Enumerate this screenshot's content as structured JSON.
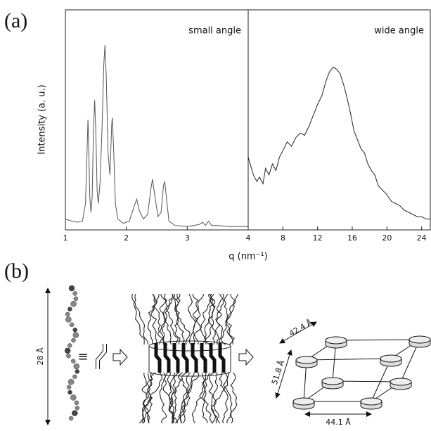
{
  "labels": {
    "a": "(a)",
    "b": "(b)"
  },
  "chart_data": [
    {
      "type": "line",
      "annotation": "small angle",
      "ylabel": "Intensity (a. u.)",
      "xlabel": "q (nm⁻¹)",
      "color": "#555555",
      "xlim": [
        1,
        4
      ],
      "xticks": [
        1,
        2,
        3
      ],
      "ylim": [
        0,
        100
      ],
      "x": [
        1.0,
        1.1,
        1.2,
        1.28,
        1.33,
        1.36,
        1.37,
        1.38,
        1.4,
        1.42,
        1.44,
        1.46,
        1.48,
        1.5,
        1.52,
        1.54,
        1.57,
        1.6,
        1.63,
        1.65,
        1.67,
        1.7,
        1.73,
        1.76,
        1.77,
        1.79,
        1.82,
        1.86,
        1.95,
        2.05,
        2.12,
        2.17,
        2.21,
        2.28,
        2.35,
        2.4,
        2.43,
        2.47,
        2.52,
        2.57,
        2.61,
        2.63,
        2.66,
        2.7,
        2.8,
        3.0,
        3.1,
        3.2,
        3.25,
        3.3,
        3.35,
        3.4,
        3.5,
        3.7,
        3.9,
        4.0
      ],
      "values": [
        5,
        4,
        3.5,
        4,
        12,
        40,
        50,
        42,
        15,
        8,
        15,
        45,
        59,
        45,
        18,
        12,
        22,
        45,
        75,
        84,
        70,
        35,
        25,
        48,
        51,
        38,
        12,
        5,
        3,
        4,
        10,
        14,
        9,
        5,
        7,
        18,
        23,
        15,
        6,
        8,
        20,
        22,
        14,
        4,
        2,
        1.5,
        2,
        2.5,
        3.5,
        2,
        4,
        2,
        2,
        1.5,
        1.5,
        1.5
      ]
    },
    {
      "type": "line",
      "annotation": "wide angle",
      "color": "#222222",
      "xlim": [
        4,
        25
      ],
      "xticks": [
        4,
        8,
        12,
        16,
        20,
        24
      ],
      "ylim": [
        0,
        100
      ],
      "x": [
        4.0,
        4.3,
        4.6,
        5.0,
        5.3,
        5.7,
        6.0,
        6.4,
        6.8,
        7.2,
        7.6,
        8.0,
        8.5,
        9.0,
        9.5,
        10.0,
        10.5,
        11.0,
        11.5,
        12.0,
        12.5,
        13.0,
        13.4,
        13.8,
        14.2,
        14.6,
        15.0,
        15.4,
        15.8,
        16.2,
        16.6,
        17.0,
        17.4,
        17.8,
        18.2,
        18.6,
        19.0,
        19.5,
        20.0,
        20.5,
        21.0,
        21.5,
        22.0,
        22.5,
        23.0,
        23.5,
        24.0,
        24.5,
        25.0
      ],
      "values": [
        33,
        29,
        25,
        22,
        24,
        21,
        28,
        25,
        30,
        27,
        33,
        36,
        40,
        38,
        42,
        44,
        43,
        47,
        52,
        57,
        61,
        68,
        72,
        74,
        73,
        71,
        66,
        60,
        53,
        45,
        41,
        37,
        35,
        30,
        27,
        25,
        20,
        18,
        16,
        13,
        12,
        11,
        9,
        8,
        7,
        6,
        6,
        5,
        5
      ]
    }
  ],
  "diagram": {
    "molecule_length": "28 Å",
    "equivalent": "≡",
    "lattice_a": "42.4 Å",
    "lattice_b": "51.8 Å",
    "lattice_c": "44.1 Å"
  }
}
